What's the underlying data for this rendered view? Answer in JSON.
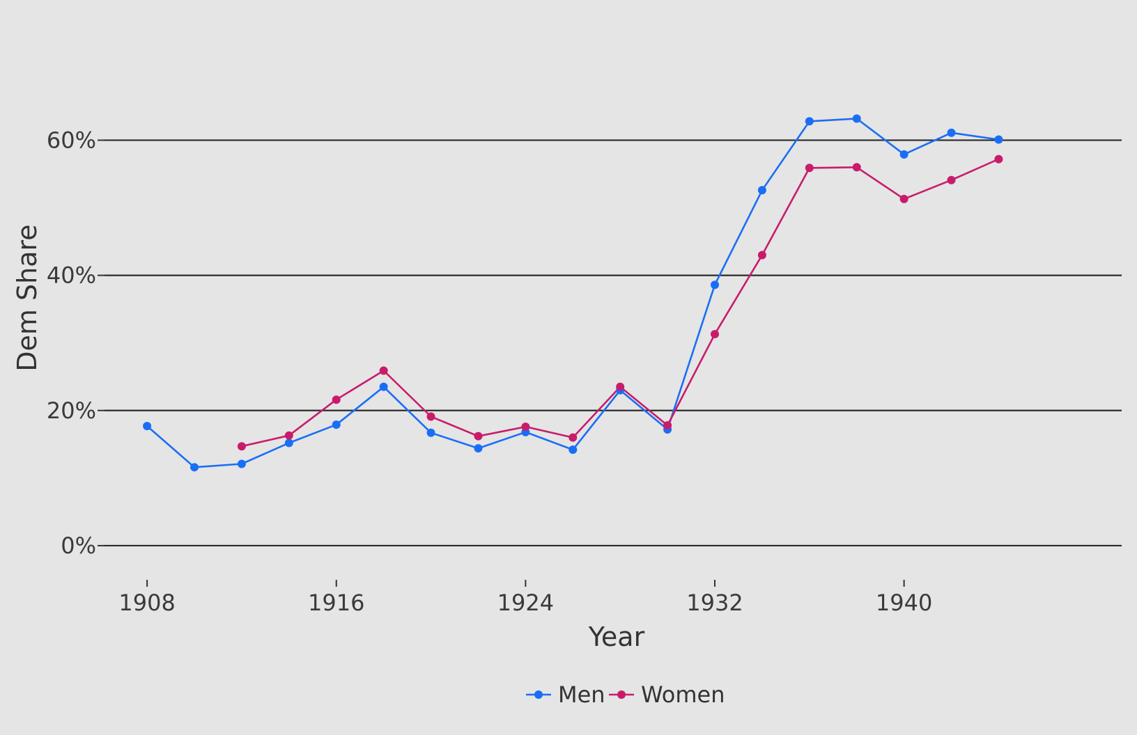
{
  "chart_data": {
    "type": "line",
    "title": "",
    "xlabel": "Year",
    "ylabel": "Dem Share",
    "x": [
      1908,
      1910,
      1912,
      1914,
      1916,
      1918,
      1920,
      1922,
      1924,
      1926,
      1928,
      1930,
      1932,
      1934,
      1936,
      1938,
      1940,
      1942,
      1944
    ],
    "series": [
      {
        "name": "Men",
        "color": "#1a6ef5",
        "values": [
          17.7,
          11.6,
          12.1,
          15.2,
          17.9,
          23.5,
          16.7,
          14.4,
          16.8,
          14.2,
          23.0,
          17.2,
          38.6,
          52.6,
          62.8,
          63.2,
          57.9,
          61.1,
          60.1
        ]
      },
      {
        "name": "Women",
        "color": "#c81c6b",
        "values": [
          null,
          null,
          14.7,
          16.3,
          21.6,
          25.9,
          19.1,
          16.2,
          17.6,
          16.0,
          23.5,
          17.8,
          31.3,
          43.0,
          55.9,
          56.0,
          51.3,
          54.1,
          57.2
        ]
      }
    ],
    "x_ticks": [
      "1908",
      "1916",
      "1924",
      "1932",
      "1940"
    ],
    "y_ticks": [
      "0%",
      "20%",
      "40%",
      "60%"
    ],
    "xlim": [
      1906.2,
      1949.2
    ],
    "ylim": [
      -3.2,
      75.6
    ],
    "grid": "horizontal",
    "legend_position": "bottom"
  }
}
